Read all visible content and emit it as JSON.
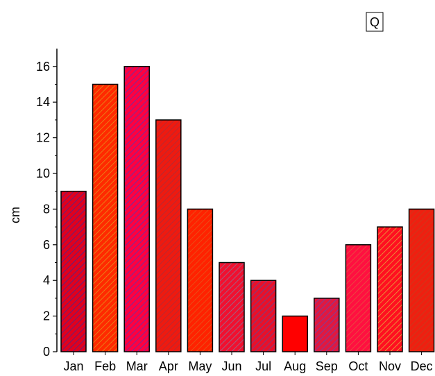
{
  "chart_data": {
    "type": "bar",
    "title": "",
    "xlabel": "",
    "ylabel": "cm",
    "legend_label": "Q",
    "legend_position": "top-right",
    "ylim": [
      0,
      17
    ],
    "yticks": [
      0,
      2,
      4,
      6,
      8,
      10,
      12,
      14,
      16
    ],
    "grid": false,
    "categories": [
      "Jan",
      "Feb",
      "Mar",
      "Apr",
      "May",
      "Jun",
      "Jul",
      "Aug",
      "Sep",
      "Oct",
      "Nov",
      "Dec"
    ],
    "values": [
      9,
      15,
      16,
      13,
      8,
      5,
      4,
      2,
      3,
      6,
      7,
      8
    ],
    "bar_fill_colors": [
      "#e0001e",
      "#ff2a00",
      "#ff0040",
      "#ee1a10",
      "#ff2200",
      "#f01030",
      "#e8102a",
      "#ff0000",
      "#e01840",
      "#ff1040",
      "#ff1020",
      "#ee2010"
    ],
    "hatch_colors": [
      "#3030a0",
      "#e0a020",
      "#4040c0",
      "#a03040",
      "#e06020",
      "#8080a0",
      "#5050a0",
      "#ff0000",
      "#5050c0",
      "#e06040",
      "#e0c040",
      "#c04020"
    ],
    "bar_edge_color": "#000000"
  }
}
